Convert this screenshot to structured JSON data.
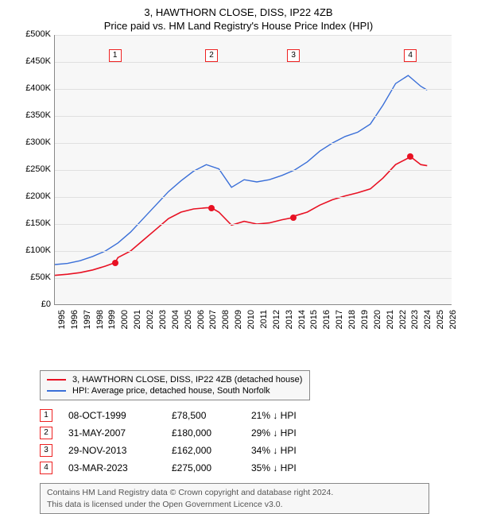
{
  "title_line1": "3, HAWTHORN CLOSE, DISS, IP22 4ZB",
  "title_line2": "Price paid vs. HM Land Registry's House Price Index (HPI)",
  "chart": {
    "type": "line",
    "background_color": "#f7f7f7",
    "grid_color": "#e0e0e0",
    "axis_color": "#888888",
    "x_years": [
      1995,
      1996,
      1997,
      1998,
      1999,
      2000,
      2001,
      2002,
      2003,
      2004,
      2005,
      2006,
      2007,
      2008,
      2009,
      2010,
      2011,
      2012,
      2013,
      2014,
      2015,
      2016,
      2017,
      2018,
      2019,
      2020,
      2021,
      2022,
      2023,
      2024,
      2025,
      2026
    ],
    "xlim": [
      1995,
      2026.5
    ],
    "ylim": [
      0,
      500000
    ],
    "ytick_step": 50000,
    "yticks": [
      "£0",
      "£50K",
      "£100K",
      "£150K",
      "£200K",
      "£250K",
      "£300K",
      "£350K",
      "£400K",
      "£450K",
      "£500K"
    ],
    "label_fontsize": 11,
    "series": [
      {
        "name": "property",
        "label": "3, HAWTHORN CLOSE, DISS, IP22 4ZB (detached house)",
        "color": "#e81123",
        "line_width": 1.6,
        "years": [
          1995,
          1996,
          1997,
          1998,
          1999,
          1999.77,
          2000,
          2001,
          2002,
          2003,
          2004,
          2005,
          2006,
          2007,
          2007.41,
          2008,
          2009,
          2010,
          2011,
          2012,
          2013,
          2013.91,
          2014,
          2015,
          2016,
          2017,
          2018,
          2019,
          2020,
          2021,
          2022,
          2023,
          2023.17,
          2024,
          2024.5
        ],
        "values": [
          55000,
          57000,
          60000,
          65000,
          72000,
          78500,
          88000,
          100000,
          120000,
          140000,
          160000,
          172000,
          178000,
          180000,
          180000,
          172000,
          148000,
          155000,
          150000,
          152000,
          158000,
          162000,
          165000,
          172000,
          185000,
          195000,
          202000,
          208000,
          215000,
          235000,
          260000,
          272000,
          275000,
          260000,
          258000
        ]
      },
      {
        "name": "hpi",
        "label": "HPI: Average price, detached house, South Norfolk",
        "color": "#3a6fd8",
        "line_width": 1.4,
        "years": [
          1995,
          1996,
          1997,
          1998,
          1999,
          2000,
          2001,
          2002,
          2003,
          2004,
          2005,
          2006,
          2007,
          2008,
          2009,
          2010,
          2011,
          2012,
          2013,
          2014,
          2015,
          2016,
          2017,
          2018,
          2019,
          2020,
          2021,
          2022,
          2023,
          2024,
          2024.5
        ],
        "values": [
          75000,
          77000,
          82000,
          90000,
          100000,
          115000,
          135000,
          160000,
          185000,
          210000,
          230000,
          248000,
          260000,
          252000,
          218000,
          232000,
          228000,
          232000,
          240000,
          250000,
          265000,
          285000,
          300000,
          312000,
          320000,
          335000,
          370000,
          410000,
          425000,
          405000,
          398000
        ]
      }
    ],
    "sale_markers": [
      {
        "n": 1,
        "year": 1999.77,
        "value": 78500,
        "box_top": 18
      },
      {
        "n": 2,
        "year": 2007.41,
        "value": 180000,
        "box_top": 18
      },
      {
        "n": 3,
        "year": 2013.91,
        "value": 162000,
        "box_top": 18
      },
      {
        "n": 4,
        "year": 2023.17,
        "value": 275000,
        "box_top": 18
      }
    ],
    "marker_border_color": "#e22",
    "dot_color": "#e81123"
  },
  "legend": {
    "items": [
      {
        "color": "#e81123",
        "label": "3, HAWTHORN CLOSE, DISS, IP22 4ZB (detached house)"
      },
      {
        "color": "#3a6fd8",
        "label": "HPI: Average price, detached house, South Norfolk"
      }
    ]
  },
  "sales": [
    {
      "n": 1,
      "date": "08-OCT-1999",
      "price": "£78,500",
      "diff": "21% ↓ HPI"
    },
    {
      "n": 2,
      "date": "31-MAY-2007",
      "price": "£180,000",
      "diff": "29% ↓ HPI"
    },
    {
      "n": 3,
      "date": "29-NOV-2013",
      "price": "£162,000",
      "diff": "34% ↓ HPI"
    },
    {
      "n": 4,
      "date": "03-MAR-2023",
      "price": "£275,000",
      "diff": "35% ↓ HPI"
    }
  ],
  "footer": {
    "line1": "Contains HM Land Registry data © Crown copyright and database right 2024.",
    "line2": "This data is licensed under the Open Government Licence v3.0."
  }
}
